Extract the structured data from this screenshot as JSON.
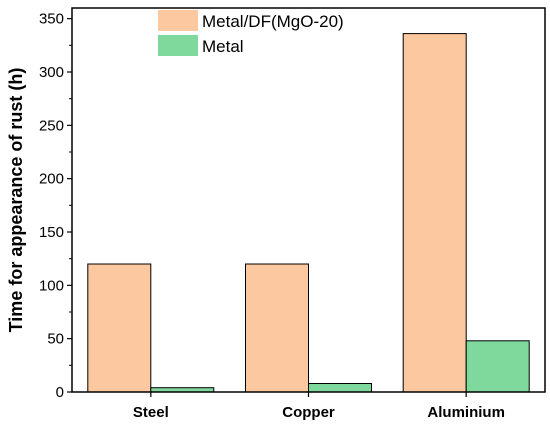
{
  "chart_data": {
    "type": "bar",
    "title": "",
    "xlabel": "",
    "ylabel": "Time for appearance of rust (h)",
    "ylim": [
      0,
      360
    ],
    "yticks": [
      0,
      50,
      100,
      150,
      200,
      250,
      300,
      350
    ],
    "categories": [
      "Steel",
      "Copper",
      "Aluminium"
    ],
    "series": [
      {
        "name": "Metal/DF(MgO-20)",
        "color": "#fcc8a0",
        "values": [
          120,
          120,
          336
        ]
      },
      {
        "name": "Metal",
        "color": "#7fd89c",
        "values": [
          4,
          8,
          48
        ]
      }
    ],
    "legend_position": "top-center",
    "grid": false
  }
}
